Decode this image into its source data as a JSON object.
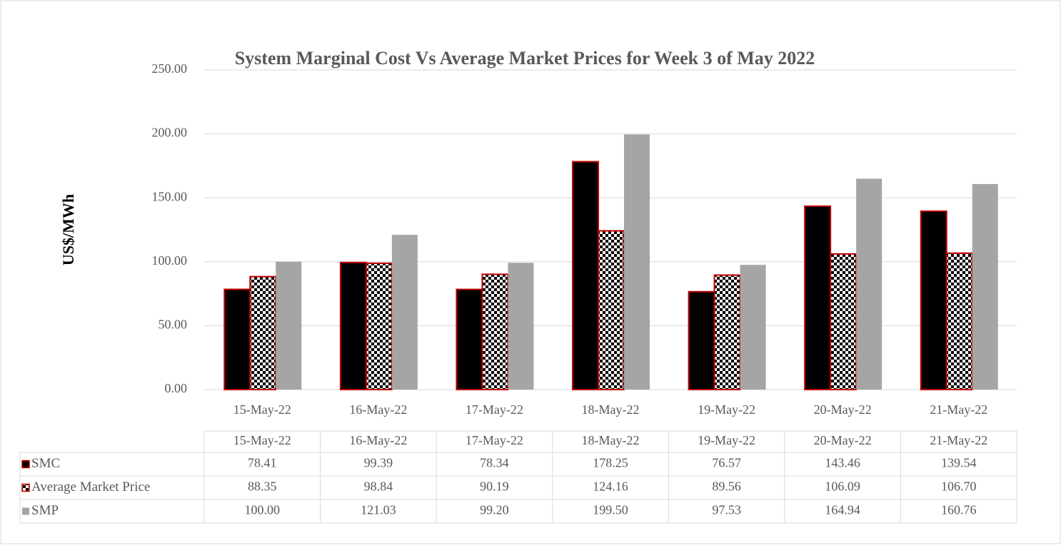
{
  "chart_data": {
    "type": "bar",
    "title": "System Marginal Cost Vs Average Market Prices for Week 3 of May 2022",
    "y_label": "US$/MWh",
    "categories": [
      "15-May-22",
      "16-May-22",
      "17-May-22",
      "18-May-22",
      "19-May-22",
      "20-May-22",
      "21-May-22"
    ],
    "series": [
      {
        "name": "SMC",
        "color": "#000000",
        "edge_color": "#c00000",
        "values": [
          78.41,
          99.39,
          78.34,
          178.25,
          76.57,
          143.46,
          139.54
        ],
        "value_labels": [
          "78.41",
          "99.39",
          "78.34",
          "178.25",
          "76.57",
          "143.46",
          "139.54"
        ]
      },
      {
        "name": "Average Market Price",
        "color": "#000000",
        "pattern": "checkerboard",
        "edge_color": "#c00000",
        "values": [
          88.35,
          98.84,
          90.19,
          124.16,
          89.56,
          106.09,
          106.7
        ],
        "value_labels": [
          "88.35",
          "98.84",
          "90.19",
          "124.16",
          "89.56",
          "106.09",
          "106.70"
        ]
      },
      {
        "name": "SMP",
        "color": "#a5a5a5",
        "values": [
          100,
          121.03,
          99.2,
          199.5,
          97.53,
          164.94,
          160.76
        ],
        "value_labels": [
          "100.00",
          "121.03",
          "99.20",
          "199.50",
          "97.53",
          "164.94",
          "160.76"
        ]
      }
    ],
    "ylim": [
      0,
      250
    ],
    "yticks": [
      {
        "value": 0,
        "label": "0.00"
      },
      {
        "value": 50,
        "label": "50.00"
      },
      {
        "value": 100,
        "label": "100.00"
      },
      {
        "value": 150,
        "label": "150.00"
      },
      {
        "value": 200,
        "label": "200.00"
      },
      {
        "value": 250,
        "label": "250.00"
      }
    ],
    "grid": true,
    "data_table": true
  }
}
